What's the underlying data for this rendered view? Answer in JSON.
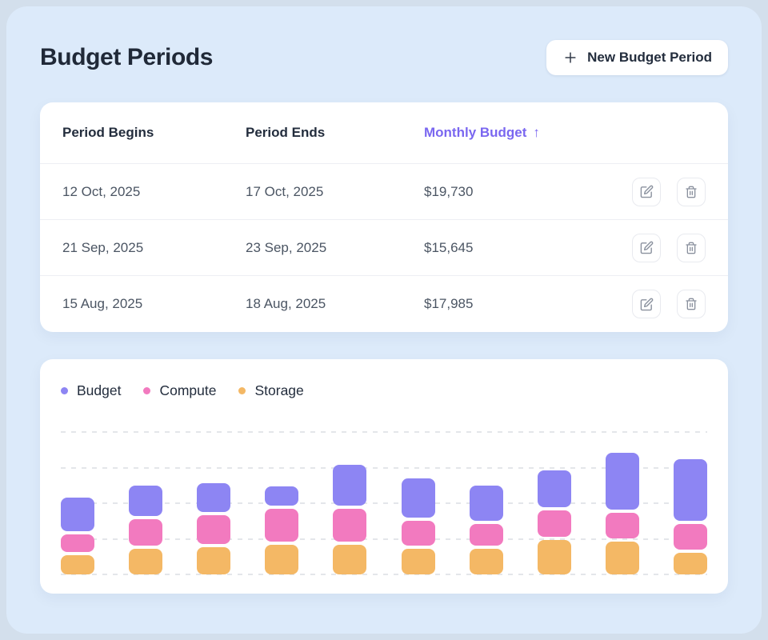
{
  "page": {
    "title": "Budget Periods"
  },
  "header": {
    "new_button": {
      "label": "New Budget Period",
      "icon": "plus-icon"
    }
  },
  "table": {
    "columns": [
      {
        "label": "Period Begins",
        "sorted": false
      },
      {
        "label": "Period Ends",
        "sorted": false
      },
      {
        "label": "Monthly Budget",
        "sorted": true,
        "sort_arrow": "↑"
      }
    ],
    "rows": [
      {
        "begins": "12 Oct, 2025",
        "ends": "17 Oct, 2025",
        "budget": "$19,730"
      },
      {
        "begins": "21 Sep, 2025",
        "ends": "23 Sep, 2025",
        "budget": "$15,645"
      },
      {
        "begins": "15 Aug, 2025",
        "ends": "18 Aug, 2025",
        "budget": "$17,985"
      }
    ],
    "row_actions": [
      {
        "name": "edit",
        "icon": "edit-icon"
      },
      {
        "name": "delete",
        "icon": "trash-icon"
      }
    ]
  },
  "chart_data": {
    "type": "bar",
    "stacked": true,
    "title": "",
    "xlabel": "",
    "ylabel": "",
    "bar_count": 10,
    "x_tick_labels_visible": false,
    "y_tick_labels_visible": false,
    "legend_position": "top-left",
    "grid": {
      "horizontal": true,
      "style": "dashed",
      "lines": 5
    },
    "value_unit": "px-height (chart shows no numeric axis; segment heights measured from screenshot, baseline at bottom gridline)",
    "series": [
      {
        "name": "Budget",
        "color": "#8d85f3",
        "values": [
          42,
          38,
          36,
          24,
          51,
          49,
          44,
          46,
          71,
          77
        ]
      },
      {
        "name": "Compute",
        "color": "#f27abf",
        "values": [
          22,
          33,
          36,
          41,
          41,
          31,
          27,
          33,
          32,
          32
        ]
      },
      {
        "name": "Storage",
        "color": "#f4b865",
        "values": [
          24,
          32,
          34,
          37,
          37,
          32,
          32,
          43,
          41,
          27
        ]
      }
    ]
  },
  "colors": {
    "outer_bg": "#d3dfec",
    "app_bg": "#dceafa",
    "card_bg": "#ffffff",
    "title_text": "#202938",
    "header_text": "#232d3d",
    "row_text": "#4b5563",
    "accent_purple": "#7a67f0",
    "bar_purple": "#8d85f3",
    "bar_pink": "#f27abf",
    "bar_orange": "#f4b865",
    "separator": "#edeff3",
    "gridline": "#e4e6ea",
    "icon_gray": "#8a919e"
  }
}
